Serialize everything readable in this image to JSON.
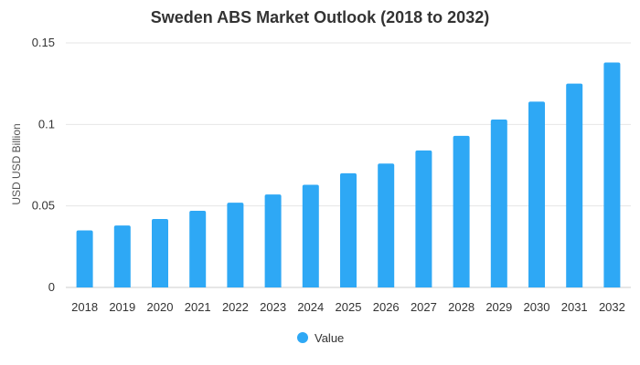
{
  "chart_data": {
    "type": "bar",
    "title": "Sweden ABS Market Outlook (2018 to 2032)",
    "xlabel": "",
    "ylabel": "USD USD Billion",
    "categories": [
      "2018",
      "2019",
      "2020",
      "2021",
      "2022",
      "2023",
      "2024",
      "2025",
      "2026",
      "2027",
      "2028",
      "2029",
      "2030",
      "2031",
      "2032"
    ],
    "series": [
      {
        "name": "Value",
        "color": "#2ea8f5",
        "values": [
          0.035,
          0.038,
          0.042,
          0.047,
          0.052,
          0.057,
          0.063,
          0.07,
          0.076,
          0.084,
          0.093,
          0.103,
          0.114,
          0.125,
          0.138
        ]
      }
    ],
    "ylim": [
      0,
      0.15
    ],
    "yticks": [
      0,
      0.05,
      0.1,
      0.15
    ],
    "ytick_labels": [
      "0",
      "0.05",
      "0.1",
      "0.15"
    ],
    "grid": true,
    "legend_position": "bottom-center"
  }
}
